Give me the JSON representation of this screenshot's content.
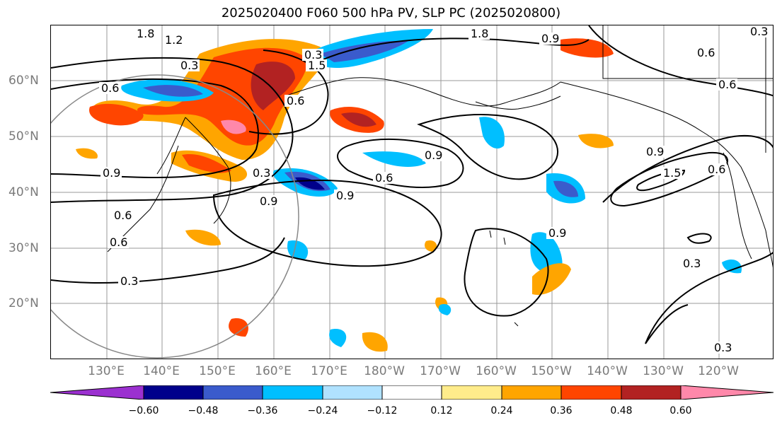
{
  "title": "2025020400 F060 500 hPa PV, SLP PC (2025020800)",
  "lat_labels": [
    "60°N",
    "50°N",
    "40°N",
    "30°N",
    "20°N"
  ],
  "lon_labels": [
    "130°E",
    "140°E",
    "150°E",
    "160°E",
    "170°E",
    "180°W",
    "170°W",
    "160°W",
    "150°W",
    "140°W",
    "130°W",
    "120°W"
  ],
  "contour_labels": [
    "1.8",
    "1.2",
    "0.3",
    "0.6",
    "0.9",
    "1.5",
    "0.6",
    "0.9",
    "0.6",
    "0.3",
    "0.6",
    "0.9",
    "0.6",
    "0.9",
    "0.3",
    "0.6",
    "0.6",
    "0.9",
    "0.9",
    "1.5",
    "0.6",
    "0.9",
    "0.3",
    "0.3",
    "0.3",
    "1.8",
    "0.3"
  ],
  "colorbar": {
    "ticks": [
      "−0.60",
      "−0.48",
      "−0.36",
      "−0.24",
      "−0.12",
      "0.12",
      "0.24",
      "0.36",
      "0.48",
      "0.60"
    ],
    "colors": [
      "#9b30d0",
      "#00008b",
      "#3a5bcc",
      "#00bfff",
      "#b0e2ff",
      "#ffffff",
      "#ffec8b",
      "#ffa500",
      "#ff4500",
      "#b22222",
      "#ff88aa"
    ]
  }
}
